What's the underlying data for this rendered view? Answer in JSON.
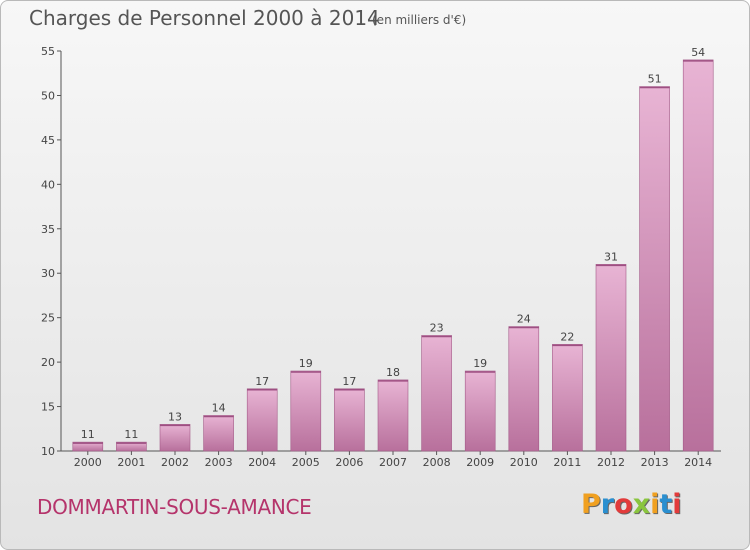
{
  "header": {
    "title": "Charges de Personnel 2000 à 2014",
    "subtitle": "(en milliers d'€)"
  },
  "footer": {
    "town": "DOMMARTIN-SOUS-AMANCE",
    "logo_letters": [
      "P",
      "r",
      "o",
      "x",
      "i",
      "t",
      "i"
    ],
    "logo_colors": [
      "#f0a020",
      "#2a8fd0",
      "#e23b3b",
      "#8ac53e",
      "#f0a020",
      "#2a8fd0",
      "#e23b3b"
    ]
  },
  "colors": {
    "bar_light": "#e8b4d4",
    "bar_dark": "#b8709c",
    "town_text": "#b5346b"
  },
  "chart_data": {
    "type": "bar",
    "title": "Charges de Personnel 2000 à 2014",
    "subtitle": "(en milliers d'€)",
    "categories": [
      "2000",
      "2001",
      "2002",
      "2003",
      "2004",
      "2005",
      "2006",
      "2007",
      "2008",
      "2009",
      "2010",
      "2011",
      "2012",
      "2013",
      "2014"
    ],
    "values": [
      11,
      11,
      13,
      14,
      17,
      19,
      17,
      18,
      23,
      19,
      24,
      22,
      31,
      51,
      54
    ],
    "ylim": [
      10,
      55
    ],
    "yticks": [
      10,
      15,
      20,
      25,
      30,
      35,
      40,
      45,
      50,
      55
    ],
    "grid": false,
    "data_labels": true
  }
}
